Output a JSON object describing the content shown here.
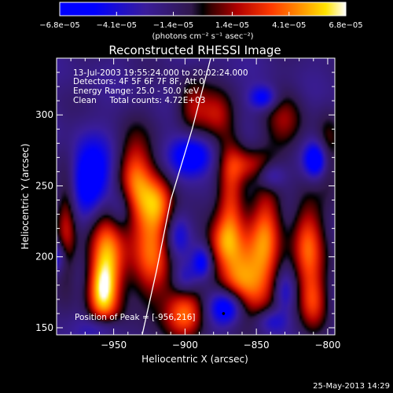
{
  "chart_data": {
    "type": "heatmap",
    "title": "Reconstructed RHESSI Image",
    "xlabel": "Heliocentric X (arcsec)",
    "ylabel": "Heliocentric Y (arcsec)",
    "xlim": [
      -990,
      -795
    ],
    "ylim": [
      145,
      340
    ],
    "x_ticks": [
      -950,
      -900,
      -850,
      -800
    ],
    "y_ticks": [
      150,
      200,
      250,
      300
    ],
    "x_tick_labels": [
      "−950",
      "−900",
      "−850",
      "−800"
    ],
    "y_tick_labels": [
      "150",
      "200",
      "250",
      "300"
    ],
    "colorbar": {
      "ticks": [
        -6.8e-05,
        -4.1e-05,
        -1.4e-05,
        1.4e-05,
        4.1e-05,
        6.8e-05
      ],
      "tick_labels": [
        "−6.8e−05",
        "−4.1e−05",
        "−1.4e−05",
        "1.4e−05",
        "4.1e−05",
        "6.8e−05"
      ],
      "range": [
        -6.8e-05,
        6.8e-05
      ],
      "unit_label": "(photons cm⁻² s⁻¹ asec⁻²)"
    },
    "info_lines": [
      "13-Jul-2003 19:55:24.000 to 20:02:24.000",
      "Detectors: 4F 5F 6F 7F 8F, Att 0",
      "Energy Range: 25.0 - 50.0 keV",
      "Clean     Total counts: 4.72E+03"
    ],
    "peak_label": "Position of Peak = [-956,216]",
    "peak": [
      -956,
      216
    ],
    "limb_curve": [
      [
        -930,
        145
      ],
      [
        -920,
        190
      ],
      [
        -910,
        240
      ],
      [
        -895,
        290
      ],
      [
        -882,
        340
      ]
    ],
    "blobs": [
      {
        "x": -955,
        "y": 203,
        "sx": 9,
        "sy": 30,
        "v": 6.4e-05
      },
      {
        "x": -958,
        "y": 175,
        "sx": 7,
        "sy": 15,
        "v": 5.2e-05
      },
      {
        "x": -923,
        "y": 205,
        "sx": 10,
        "sy": 28,
        "v": 6e-05
      },
      {
        "x": -935,
        "y": 255,
        "sx": 9,
        "sy": 22,
        "v": 5.4e-05
      },
      {
        "x": -918,
        "y": 240,
        "sx": 8,
        "sy": 14,
        "v": 3.6e-05
      },
      {
        "x": -900,
        "y": 160,
        "sx": 10,
        "sy": 12,
        "v": 5.8e-05
      },
      {
        "x": -868,
        "y": 245,
        "sx": 7,
        "sy": 30,
        "v": 5e-05
      },
      {
        "x": -860,
        "y": 185,
        "sx": 12,
        "sy": 22,
        "v": 6.2e-05
      },
      {
        "x": -843,
        "y": 215,
        "sx": 8,
        "sy": 30,
        "v": 5e-05
      },
      {
        "x": -875,
        "y": 210,
        "sx": 8,
        "sy": 12,
        "v": 3.6e-05
      },
      {
        "x": -814,
        "y": 208,
        "sx": 8,
        "sy": 24,
        "v": 5.6e-05
      },
      {
        "x": -810,
        "y": 168,
        "sx": 7,
        "sy": 14,
        "v": 3.8e-05
      },
      {
        "x": -895,
        "y": 305,
        "sx": 8,
        "sy": 14,
        "v": 3.6e-05
      },
      {
        "x": -878,
        "y": 300,
        "sx": 8,
        "sy": 12,
        "v": 3.4e-05
      },
      {
        "x": -830,
        "y": 295,
        "sx": 10,
        "sy": 16,
        "v": 3e-05
      },
      {
        "x": -983,
        "y": 222,
        "sx": 5,
        "sy": 30,
        "v": 3.6e-05
      },
      {
        "x": -855,
        "y": 265,
        "sx": 10,
        "sy": 8,
        "v": 2.8e-05
      },
      {
        "x": -800,
        "y": 275,
        "sx": 6,
        "sy": 18,
        "v": 2.6e-05
      },
      {
        "x": -965,
        "y": 255,
        "sx": 11,
        "sy": 18,
        "v": -5.6e-05
      },
      {
        "x": -945,
        "y": 235,
        "sx": 7,
        "sy": 12,
        "v": -3.2e-05
      },
      {
        "x": -895,
        "y": 272,
        "sx": 11,
        "sy": 10,
        "v": -5e-05
      },
      {
        "x": -905,
        "y": 215,
        "sx": 6,
        "sy": 12,
        "v": -3e-05
      },
      {
        "x": -870,
        "y": 165,
        "sx": 9,
        "sy": 9,
        "v": -6.2e-05
      },
      {
        "x": -900,
        "y": 185,
        "sx": 6,
        "sy": 8,
        "v": -2.6e-05
      },
      {
        "x": -840,
        "y": 155,
        "sx": 8,
        "sy": 6,
        "v": -2.6e-05
      },
      {
        "x": -808,
        "y": 268,
        "sx": 6,
        "sy": 9,
        "v": -5.2e-05
      },
      {
        "x": -845,
        "y": 312,
        "sx": 7,
        "sy": 6,
        "v": -4e-05
      },
      {
        "x": -888,
        "y": 196,
        "sx": 5,
        "sy": 8,
        "v": -4e-05
      },
      {
        "x": -958,
        "y": 150,
        "sx": 9,
        "sy": 6,
        "v": -3e-05
      },
      {
        "x": -840,
        "y": 257,
        "sx": 7,
        "sy": 7,
        "v": -3.6e-05
      },
      {
        "x": -990,
        "y": 200,
        "sx": 5,
        "sy": 8,
        "v": -3e-05
      },
      {
        "x": -830,
        "y": 175,
        "sx": 5,
        "sy": 10,
        "v": -2.4e-05
      }
    ]
  },
  "footer": {
    "date": "25-May-2013 14:29"
  }
}
